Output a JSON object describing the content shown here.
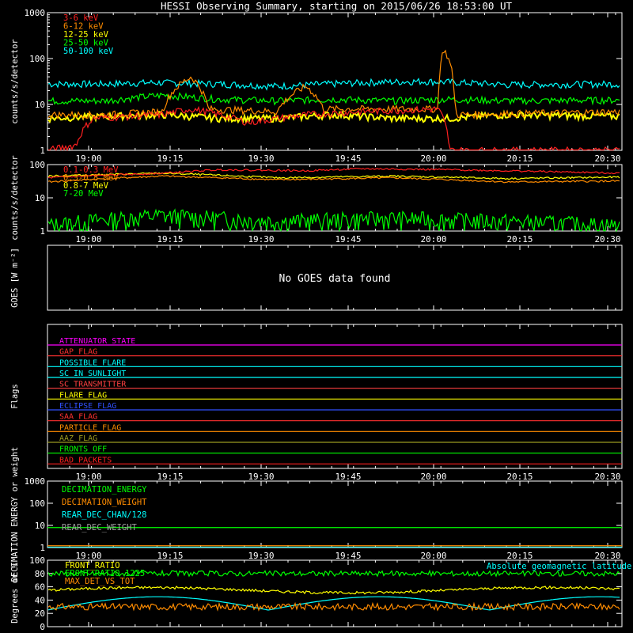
{
  "title": "HESSI Observing Summary, starting on 2015/06/26 18:53:00 UT",
  "time_ticks": [
    "19:00",
    "19:15",
    "19:30",
    "19:45",
    "20:00",
    "20:15",
    "20:30"
  ],
  "chart_data": [
    {
      "type": "line",
      "ylabel": "counts/s/detector",
      "yscale": "log",
      "ylim": [
        1,
        1000
      ],
      "yticks": [
        "1",
        "10",
        "100",
        "1000"
      ],
      "legend_position": "top-left",
      "series": [
        {
          "name": "3-6 keV",
          "color": "#ff2020",
          "points": [
            [
              0,
              1
            ],
            [
              5,
              1.3
            ],
            [
              8,
              5
            ],
            [
              20,
              6
            ],
            [
              25,
              8
            ],
            [
              35,
              4
            ],
            [
              45,
              6
            ],
            [
              55,
              7
            ],
            [
              68,
              8
            ],
            [
              70,
              1
            ]
          ]
        },
        {
          "name": "6-12 keV",
          "color": "#ff8c00",
          "points": [
            [
              0,
              6
            ],
            [
              10,
              6
            ],
            [
              20,
              7
            ],
            [
              25,
              40
            ],
            [
              28,
              8
            ],
            [
              40,
              7
            ],
            [
              45,
              25
            ],
            [
              48,
              8
            ],
            [
              68,
              8
            ],
            [
              69,
              160
            ],
            [
              71,
              6
            ],
            [
              100,
              7
            ]
          ]
        },
        {
          "name": "12-25 keV",
          "color": "#ffff00",
          "points": [
            [
              0,
              5
            ],
            [
              10,
              5.5
            ],
            [
              20,
              6
            ],
            [
              30,
              5
            ],
            [
              40,
              5
            ],
            [
              50,
              6
            ],
            [
              60,
              5
            ],
            [
              70,
              5
            ],
            [
              80,
              6
            ],
            [
              100,
              5.5
            ]
          ]
        },
        {
          "name": "25-50 keV",
          "color": "#00ff00",
          "points": [
            [
              0,
              12
            ],
            [
              10,
              12
            ],
            [
              20,
              16
            ],
            [
              30,
              13
            ],
            [
              40,
              12
            ],
            [
              50,
              13
            ],
            [
              60,
              12
            ],
            [
              70,
              13
            ],
            [
              80,
              12
            ],
            [
              100,
              12.5
            ]
          ]
        },
        {
          "name": "50-100 keV",
          "color": "#00ffff",
          "points": [
            [
              0,
              28
            ],
            [
              10,
              28
            ],
            [
              18,
              30
            ],
            [
              30,
              28
            ],
            [
              40,
              25
            ],
            [
              55,
              30
            ],
            [
              65,
              32
            ],
            [
              72,
              30
            ],
            [
              80,
              27
            ],
            [
              100,
              28
            ]
          ]
        }
      ]
    },
    {
      "type": "line",
      "ylabel": "counts/s/detector",
      "yscale": "log",
      "ylim": [
        1,
        100
      ],
      "yticks": [
        "1",
        "10",
        "100"
      ],
      "legend_position": "top-left",
      "series": [
        {
          "name": "0.1-0.3 MeV",
          "color": "#ff2020",
          "points": [
            [
              0,
              40
            ],
            [
              20,
              55
            ],
            [
              30,
              70
            ],
            [
              45,
              65
            ],
            [
              55,
              75
            ],
            [
              70,
              70
            ],
            [
              100,
              55
            ]
          ]
        },
        {
          "name": "0.3-0.8 MeV",
          "color": "#ff8c00",
          "points": [
            [
              0,
              30
            ],
            [
              20,
              45
            ],
            [
              40,
              35
            ],
            [
              60,
              40
            ],
            [
              80,
              30
            ],
            [
              100,
              32
            ]
          ]
        },
        {
          "name": "0.8-7 MeV",
          "color": "#ffff00",
          "points": [
            [
              0,
              45
            ],
            [
              20,
              55
            ],
            [
              40,
              40
            ],
            [
              60,
              45
            ],
            [
              80,
              38
            ],
            [
              100,
              42
            ]
          ]
        },
        {
          "name": "7-20 MeV",
          "color": "#00ff00",
          "points": [
            [
              0,
              1.5
            ],
            [
              20,
              3
            ],
            [
              40,
              2
            ],
            [
              60,
              2.5
            ],
            [
              80,
              2
            ],
            [
              100,
              1.5
            ]
          ]
        }
      ]
    },
    {
      "type": "line",
      "ylabel": "GOES [W m⁻²]",
      "message": "No GOES data found",
      "series": []
    },
    {
      "type": "line",
      "ylabel": "Flags",
      "series": [
        {
          "name": "ATTENUATOR_STATE",
          "color": "#ff00ff",
          "points": []
        },
        {
          "name": "GAP_FLAG",
          "color": "#ff3030",
          "points": []
        },
        {
          "name": "POSSIBLE_FLARE",
          "color": "#00ffff",
          "points": []
        },
        {
          "name": "SC_IN_SUNLIGHT",
          "color": "#00ffff",
          "points": []
        },
        {
          "name": "SC_TRANSMITTER",
          "color": "#ff4040",
          "points": []
        },
        {
          "name": "FLARE_FLAG",
          "color": "#ffff00",
          "points": []
        },
        {
          "name": "ECLIPSE_FLAG",
          "color": "#3050ff",
          "points": []
        },
        {
          "name": "SAA_FLAG",
          "color": "#ff3030",
          "points": []
        },
        {
          "name": "PARTICLE_FLAG",
          "color": "#ff8c00",
          "points": []
        },
        {
          "name": "AAZ_FLAG",
          "color": "#9a9a20",
          "points": []
        },
        {
          "name": "FRONTS_OFF",
          "color": "#00ff00",
          "points": []
        },
        {
          "name": "BAD_PACKETS",
          "color": "#ff2020",
          "points": []
        }
      ]
    },
    {
      "type": "line",
      "ylabel": "DECIMATION ENERGY or weight",
      "yscale": "log",
      "ylim": [
        1,
        1000
      ],
      "yticks": [
        "1",
        "10",
        "100",
        "1000"
      ],
      "legend_position": "top-left",
      "series": [
        {
          "name": "DECIMATION_ENERGY",
          "color": "#00ff00",
          "points": []
        },
        {
          "name": "DECIMATION_WEIGHT",
          "color": "#ff8c00",
          "points": []
        },
        {
          "name": "REAR_DEC_CHAN/128",
          "color": "#00ffff",
          "points": []
        },
        {
          "name": "REAR_DEC_WEIGHT",
          "color": "#a0a0a0",
          "points": []
        }
      ]
    },
    {
      "type": "line",
      "ylabel": "Degrees or %",
      "ylim": [
        0,
        100
      ],
      "yticks": [
        "0",
        "20",
        "40",
        "60",
        "80",
        "100"
      ],
      "legend_position": "top-left",
      "series": [
        {
          "name": "FRONT_RATIO",
          "color": "#ffff00",
          "points": []
        },
        {
          "name": "FRONT_RATIO_1225",
          "color": "#00ff00",
          "points": []
        },
        {
          "name": "MAX_DET_VS_TOT",
          "color": "#ff8c00",
          "points": []
        },
        {
          "name": "Absolute geomagnetic latitude",
          "color": "#00ffff",
          "points": []
        }
      ]
    }
  ]
}
